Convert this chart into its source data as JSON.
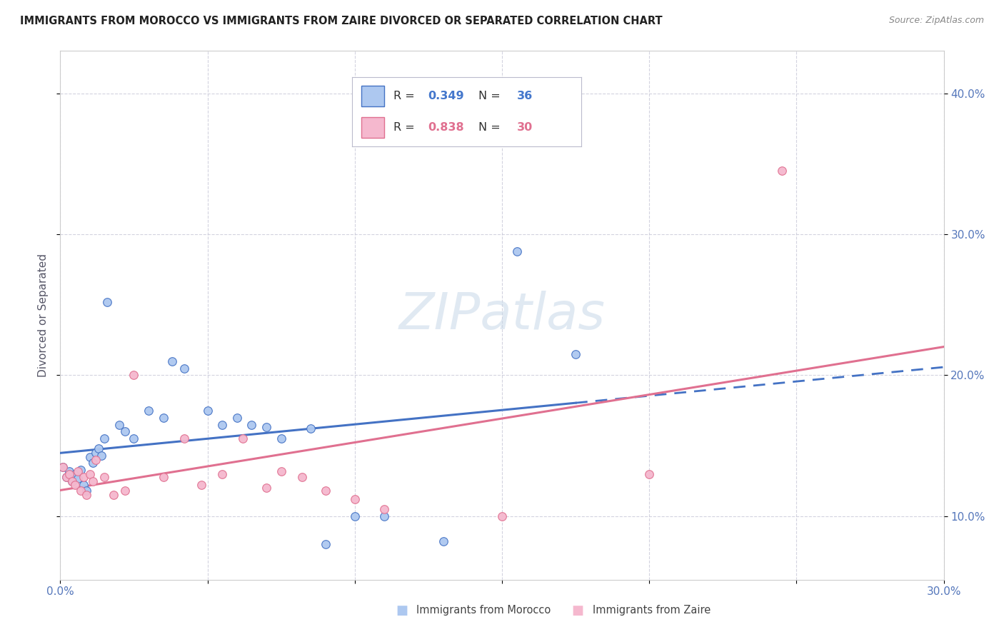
{
  "title": "IMMIGRANTS FROM MOROCCO VS IMMIGRANTS FROM ZAIRE DIVORCED OR SEPARATED CORRELATION CHART",
  "source": "Source: ZipAtlas.com",
  "ylabel": "Divorced or Separated",
  "legend_label1": "Immigrants from Morocco",
  "legend_label2": "Immigrants from Zaire",
  "R1": 0.349,
  "N1": 36,
  "R2": 0.838,
  "N2": 30,
  "color_morocco": "#adc8f0",
  "color_zaire": "#f5b8ce",
  "line_color_morocco": "#4472c4",
  "line_color_zaire": "#e07090",
  "watermark": "ZIPatlas",
  "xlim": [
    0.0,
    0.3
  ],
  "ylim": [
    0.055,
    0.43
  ],
  "morocco_x": [
    0.001,
    0.002,
    0.003,
    0.004,
    0.005,
    0.006,
    0.007,
    0.008,
    0.009,
    0.01,
    0.011,
    0.012,
    0.013,
    0.014,
    0.015,
    0.016,
    0.02,
    0.022,
    0.025,
    0.03,
    0.035,
    0.038,
    0.042,
    0.05,
    0.055,
    0.06,
    0.065,
    0.07,
    0.075,
    0.085,
    0.09,
    0.1,
    0.11,
    0.13,
    0.155,
    0.175
  ],
  "morocco_y": [
    0.135,
    0.128,
    0.132,
    0.125,
    0.13,
    0.127,
    0.133,
    0.122,
    0.118,
    0.142,
    0.138,
    0.145,
    0.148,
    0.143,
    0.155,
    0.252,
    0.165,
    0.16,
    0.155,
    0.175,
    0.17,
    0.21,
    0.205,
    0.175,
    0.165,
    0.17,
    0.165,
    0.163,
    0.155,
    0.162,
    0.08,
    0.1,
    0.1,
    0.082,
    0.288,
    0.215
  ],
  "zaire_x": [
    0.001,
    0.002,
    0.003,
    0.004,
    0.005,
    0.006,
    0.007,
    0.008,
    0.009,
    0.01,
    0.011,
    0.012,
    0.015,
    0.018,
    0.022,
    0.025,
    0.035,
    0.042,
    0.048,
    0.055,
    0.062,
    0.07,
    0.075,
    0.082,
    0.09,
    0.1,
    0.11,
    0.15,
    0.2,
    0.245
  ],
  "zaire_y": [
    0.135,
    0.128,
    0.13,
    0.125,
    0.122,
    0.132,
    0.118,
    0.128,
    0.115,
    0.13,
    0.125,
    0.14,
    0.128,
    0.115,
    0.118,
    0.2,
    0.128,
    0.155,
    0.122,
    0.13,
    0.155,
    0.12,
    0.132,
    0.128,
    0.118,
    0.112,
    0.105,
    0.1,
    0.13,
    0.345
  ]
}
